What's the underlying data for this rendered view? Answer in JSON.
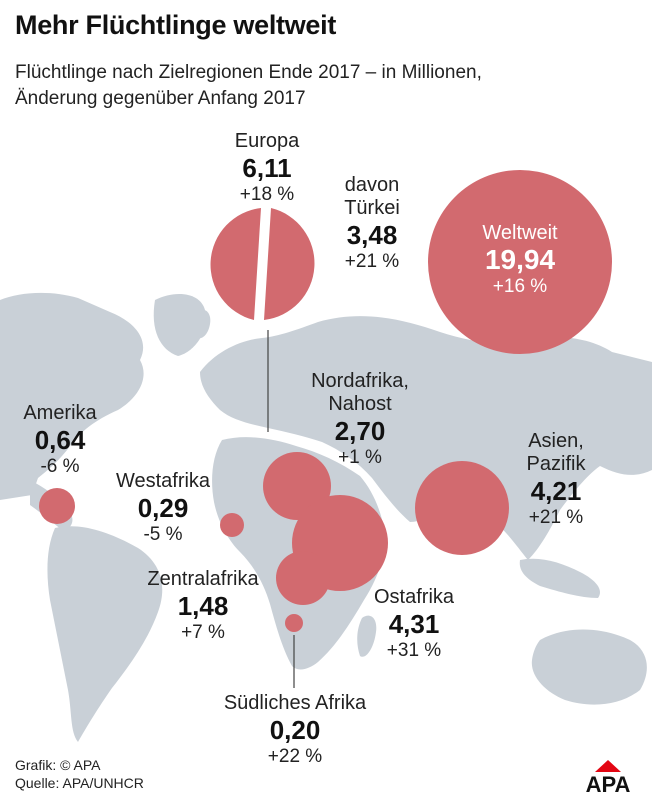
{
  "title": "Mehr Flüchtlinge weltweit",
  "subtitle_line1": "Flüchtlinge nach Zielregionen Ende 2017 – in Millionen,",
  "subtitle_line2": "Änderung gegenüber Anfang 2017",
  "regions": {
    "europa": {
      "name": "Europa",
      "value": "6,11",
      "change": "+18 %"
    },
    "tuerkei": {
      "name_line1": "davon",
      "name_line2": "Türkei",
      "value": "3,48",
      "change": "+21 %"
    },
    "weltweit": {
      "name": "Weltweit",
      "value": "19,94",
      "change": "+16 %"
    },
    "amerika": {
      "name": "Amerika",
      "value": "0,64",
      "change": "-6 %"
    },
    "nordafrika": {
      "name_line1": "Nordafrika,",
      "name_line2": "Nahost",
      "value": "2,70",
      "change": "+1 %"
    },
    "asien": {
      "name_line1": "Asien,",
      "name_line2": "Pazifik",
      "value": "4,21",
      "change": "+21 %"
    },
    "westafrika": {
      "name": "Westafrika",
      "value": "0,29",
      "change": "-5 %"
    },
    "zentralafrika": {
      "name": "Zentralafrika",
      "value": "1,48",
      "change": "+7 %"
    },
    "ostafrika": {
      "name": "Ostafrika",
      "value": "4,31",
      "change": "+31 %"
    },
    "suedliches_afrika": {
      "name": "Südliches Afrika",
      "value": "0,20",
      "change": "+22 %"
    }
  },
  "footer": {
    "grafik": "Grafik: © APA",
    "quelle": "Quelle: APA/UNHCR"
  },
  "logo_text": "APA",
  "colors": {
    "bubble": "#d26a6f",
    "land": "#c9d0d7",
    "logo_red": "#e30613",
    "text": "#111111"
  }
}
